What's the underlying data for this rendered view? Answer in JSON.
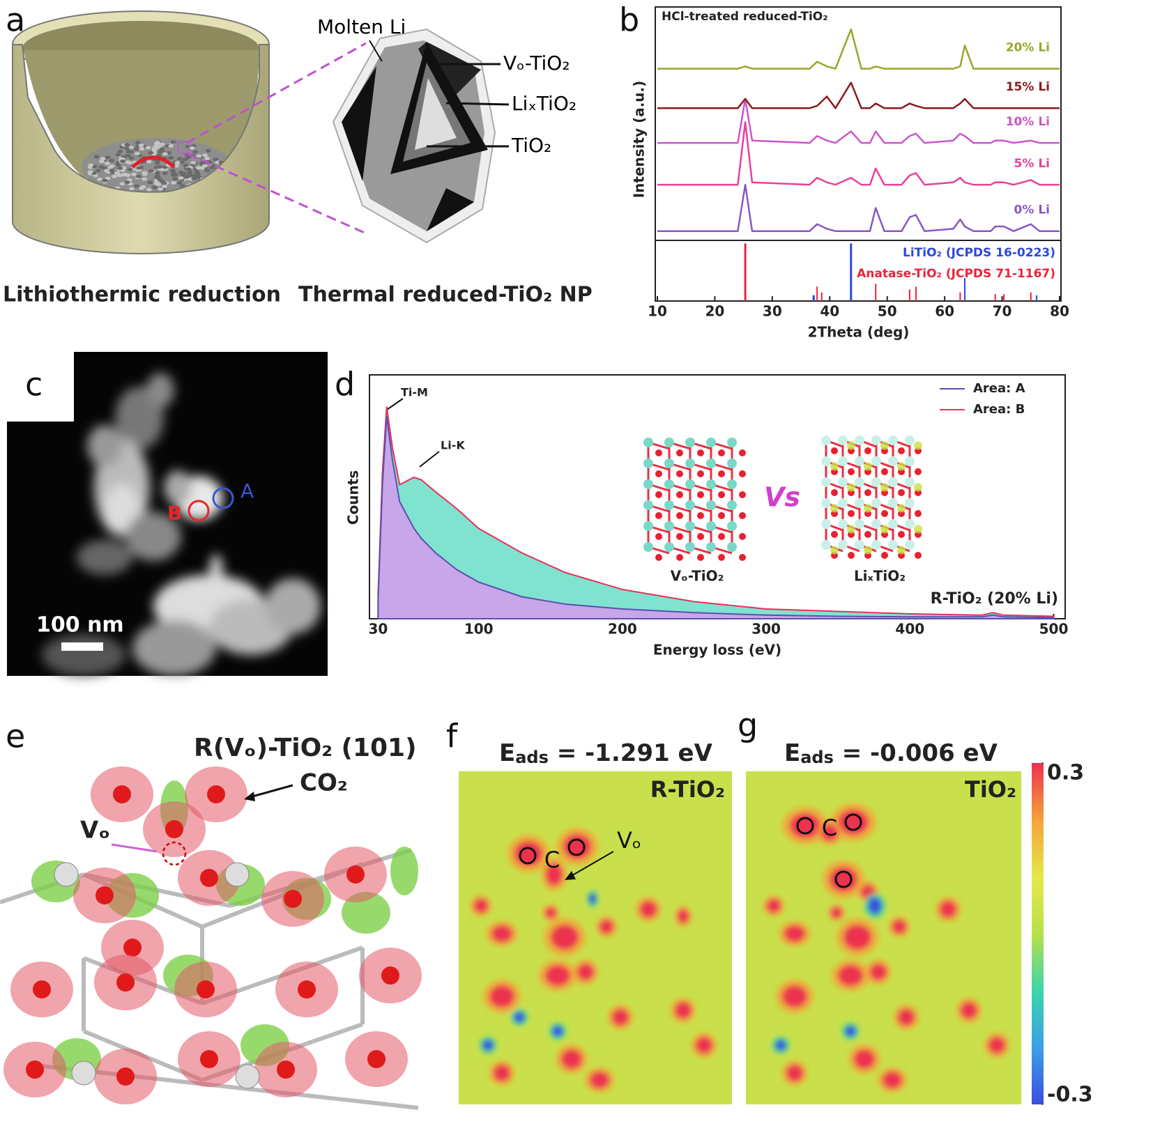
{
  "panels": {
    "a": {
      "label": "a",
      "molten": "Molten Li",
      "vo": "Vₒ-TiO₂",
      "lix": "LiₓTiO₂",
      "tio2": "TiO₂",
      "caption_left": "Lithiothermic reduction",
      "caption_right": "Thermal reduced-TiO₂ NP"
    },
    "b": {
      "label": "b"
    },
    "c": {
      "label": "c",
      "point_a": "A",
      "point_b": "B",
      "scale": "100 nm"
    },
    "d": {
      "label": "d"
    },
    "e": {
      "label": "e",
      "title": "R(Vₒ)-TiO₂ (101)",
      "co2": "CO₂",
      "vo": "Vₒ"
    },
    "f": {
      "label": "f",
      "energy": {
        "symbol": "E",
        "sub": "ads",
        "rest": " = -1.291 eV"
      },
      "corner": "R-TiO₂",
      "carbon": "C",
      "vo": "Vₒ"
    },
    "g": {
      "label": "g",
      "energy": {
        "symbol": "E",
        "sub": "ads",
        "rest": " = -0.006 eV"
      },
      "corner": "TiO₂",
      "carbon": "C"
    },
    "colorbar": {
      "lim": [
        -0.3,
        0.3
      ],
      "ticks": [
        0.3,
        -0.3
      ],
      "colors": [
        "#3a4fe0",
        "#3aa0e8",
        "#3ad6a8",
        "#b8e04a",
        "#e6e84a",
        "#f5a23a",
        "#ec3050"
      ]
    }
  },
  "chart_data": [
    {
      "type": "line",
      "title": "HCl-treated reduced-TiO₂",
      "xlabel": "2Theta (deg)",
      "ylabel": "Intensity (a.u.)",
      "x": [
        10,
        24,
        25.3,
        26.5,
        36.5,
        37.8,
        39.5,
        41,
        43.7,
        45.5,
        47,
        48,
        49.5,
        52.5,
        53.9,
        55,
        56.5,
        61.5,
        62.7,
        63.5,
        65,
        68,
        68.8,
        70.3,
        72,
        75,
        76.5,
        80
      ],
      "xlim": [
        10,
        80
      ],
      "xticks": [
        10,
        20,
        30,
        40,
        50,
        60,
        70,
        80
      ],
      "ylim": [
        0,
        100
      ],
      "y2lim": [
        0,
        100
      ],
      "series": [
        {
          "name": "0% Li",
          "color": "#8657c4",
          "values": [
            4,
            4,
            24,
            4,
            4,
            7,
            5,
            4,
            4,
            4,
            4,
            14,
            4,
            4,
            10,
            11,
            4,
            5,
            9,
            6,
            4,
            4,
            6,
            6,
            4,
            7,
            4,
            4
          ]
        },
        {
          "name": "5% Li",
          "color": "#e8409a",
          "values": [
            24,
            24,
            51,
            25,
            24,
            27,
            25,
            24,
            27,
            24,
            24,
            31,
            24,
            24,
            28,
            29,
            24,
            25,
            27,
            25,
            24,
            24,
            25,
            25,
            24,
            26,
            24,
            24
          ]
        },
        {
          "name": "10% Li",
          "color": "#cc55cc",
          "values": [
            42,
            42,
            61,
            43,
            42,
            45,
            43,
            42,
            47,
            42,
            42,
            47,
            42,
            42,
            45,
            46,
            42,
            43,
            46,
            45,
            42,
            42,
            43,
            43,
            42,
            43,
            42,
            42
          ]
        },
        {
          "name": "15% Li",
          "color": "#8b1a1a",
          "values": [
            57,
            57,
            61,
            57,
            57,
            58,
            62,
            57,
            68,
            57,
            57,
            59,
            57,
            57,
            59,
            58,
            57,
            57,
            59,
            61,
            57,
            57,
            57,
            57,
            57,
            57,
            57,
            57
          ]
        },
        {
          "name": "20% Li",
          "color": "#9aa52a",
          "values": [
            74,
            74,
            75,
            74,
            74,
            77,
            75,
            74,
            91,
            74,
            74,
            75,
            74,
            74,
            74,
            74,
            74,
            74,
            75,
            84,
            74,
            74,
            74,
            74,
            74,
            74,
            74,
            74
          ]
        },
        {
          "name": "LiTiO₂ (JCPDS 16-0223)",
          "color": "#2b48d8",
          "axis": "y2",
          "x": [
            37.2,
            43.7,
            63.5,
            76
          ],
          "values": [
            10,
            100,
            40,
            10
          ]
        },
        {
          "name": "Anatase-TiO₂ (JCPDS 71-1167)",
          "color": "#e8243a",
          "axis": "y2",
          "x": [
            25.3,
            37.8,
            38.6,
            48,
            53.9,
            55,
            62.7,
            68.8,
            70.3,
            75
          ],
          "values": [
            100,
            25,
            15,
            30,
            20,
            25,
            15,
            12,
            12,
            15
          ]
        }
      ]
    },
    {
      "type": "area",
      "xlabel": "Energy loss (eV)",
      "ylabel": "Counts",
      "annotations": [
        "Ti-M",
        "Li-K",
        "R-TiO₂ (20% Li)"
      ],
      "insets": [
        "Vₒ-TiO₂",
        "Vs",
        "LiₓTiO₂"
      ],
      "x": [
        30,
        33,
        36,
        40,
        45,
        55,
        60,
        70,
        85,
        100,
        130,
        160,
        200,
        250,
        300,
        350,
        400,
        450,
        458,
        465,
        500
      ],
      "xlim": [
        24,
        508
      ],
      "xticks": [
        30,
        100,
        200,
        300,
        400,
        500
      ],
      "ylim": [
        0,
        100
      ],
      "legend": "upper right",
      "series": [
        {
          "name": "Area: A",
          "color": "#5a4fb0",
          "fill": "#c8a6ea",
          "values": [
            8,
            55,
            83,
            65,
            48,
            37,
            33,
            27,
            20,
            15,
            9,
            6,
            4,
            2.5,
            1.5,
            1,
            0.8,
            0.8,
            1.5,
            0.8,
            0.5
          ]
        },
        {
          "name": "Area: B",
          "color": "#e8305a",
          "fill": "#7fe3d0",
          "values": [
            10,
            60,
            87,
            70,
            55,
            58,
            57,
            52,
            45,
            37,
            27,
            19,
            12,
            7,
            4,
            3,
            2,
            1.5,
            2.5,
            1.5,
            1
          ]
        }
      ]
    }
  ]
}
